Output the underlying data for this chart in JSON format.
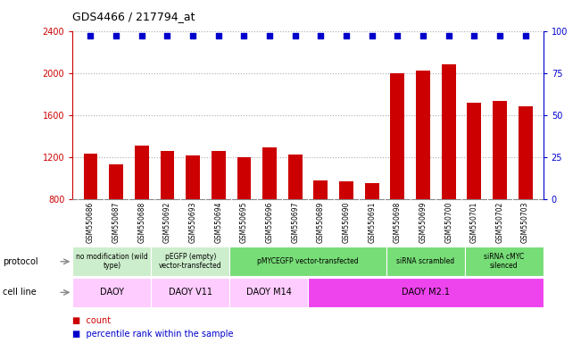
{
  "title": "GDS4466 / 217794_at",
  "samples": [
    "GSM550686",
    "GSM550687",
    "GSM550688",
    "GSM550692",
    "GSM550693",
    "GSM550694",
    "GSM550695",
    "GSM550696",
    "GSM550697",
    "GSM550689",
    "GSM550690",
    "GSM550691",
    "GSM550698",
    "GSM550699",
    "GSM550700",
    "GSM550701",
    "GSM550702",
    "GSM550703"
  ],
  "counts": [
    1230,
    1130,
    1310,
    1260,
    1215,
    1255,
    1200,
    1290,
    1225,
    980,
    970,
    950,
    2000,
    2020,
    2080,
    1720,
    1730,
    1680
  ],
  "percentiles": [
    97,
    97,
    97,
    97,
    97,
    97,
    97,
    97,
    97,
    97,
    97,
    97,
    97,
    97,
    97,
    97,
    97,
    97
  ],
  "bar_color": "#cc0000",
  "dot_color": "#0000cc",
  "ylim_left": [
    800,
    2400
  ],
  "ylim_right": [
    0,
    100
  ],
  "yticks_left": [
    800,
    1200,
    1600,
    2000,
    2400
  ],
  "yticks_right": [
    0,
    25,
    50,
    75,
    100
  ],
  "protocol_labels": [
    {
      "text": "no modification (wild\ntype)",
      "start": 0,
      "end": 3,
      "color": "#cceecc"
    },
    {
      "text": "pEGFP (empty)\nvector-transfected",
      "start": 3,
      "end": 6,
      "color": "#cceecc"
    },
    {
      "text": "pMYCEGFP vector-transfected",
      "start": 6,
      "end": 12,
      "color": "#77dd77"
    },
    {
      "text": "siRNA scrambled",
      "start": 12,
      "end": 15,
      "color": "#77dd77"
    },
    {
      "text": "siRNA cMYC\nsilenced",
      "start": 15,
      "end": 18,
      "color": "#77dd77"
    }
  ],
  "cellline_labels": [
    {
      "text": "DAOY",
      "start": 0,
      "end": 3,
      "color": "#ffccff"
    },
    {
      "text": "DAOY V11",
      "start": 3,
      "end": 6,
      "color": "#ffccff"
    },
    {
      "text": "DAOY M14",
      "start": 6,
      "end": 9,
      "color": "#ffccff"
    },
    {
      "text": "DAOY M2.1",
      "start": 9,
      "end": 18,
      "color": "#ee44ee"
    }
  ],
  "protocol_row_label": "protocol",
  "cellline_row_label": "cell line",
  "legend_count_color": "#cc0000",
  "legend_dot_color": "#0000cc",
  "grid_color": "#aaaaaa",
  "bg_color": "#ffffff",
  "bar_width": 0.55,
  "sample_bg_color": "#d8d8d8"
}
